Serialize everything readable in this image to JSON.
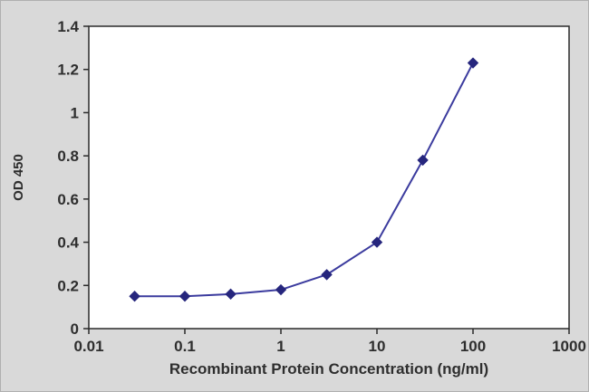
{
  "chart_data": {
    "type": "line",
    "x": [
      0.03,
      0.1,
      0.3,
      1,
      3,
      10,
      30,
      100
    ],
    "series": [
      {
        "name": "OD 450",
        "values": [
          0.15,
          0.15,
          0.16,
          0.18,
          0.25,
          0.4,
          0.78,
          1.23
        ]
      }
    ],
    "title": "",
    "xlabel": "Recombinant Protein Concentration (ng/ml)",
    "ylabel": "OD 450",
    "x_scale": "log",
    "xlim": [
      0.01,
      1000
    ],
    "ylim": [
      0,
      1.4
    ],
    "x_ticks": [
      0.01,
      0.1,
      1,
      10,
      100,
      1000
    ],
    "x_tick_labels": [
      "0.01",
      "0.1",
      "1",
      "10",
      "100",
      "1000"
    ],
    "y_ticks": [
      0,
      0.2,
      0.4,
      0.6,
      0.8,
      1,
      1.2,
      1.4
    ],
    "y_tick_labels": [
      "0",
      "0.2",
      "0.4",
      "0.6",
      "0.8",
      "1",
      "1.2",
      "1.4"
    ],
    "grid": false,
    "legend_position": "none",
    "marker": "diamond",
    "colors": {
      "line": "#3b3b9e",
      "marker": "#26267d",
      "plot_background": "#ffffff",
      "outer_background": "#d9d9d9",
      "axis": "#2a2a2a",
      "text": "#2e2e2e"
    }
  }
}
